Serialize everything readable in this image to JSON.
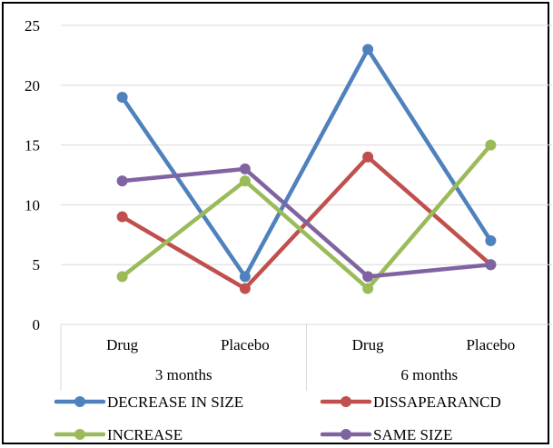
{
  "chart_data": {
    "type": "line",
    "title": "",
    "xlabel": "",
    "ylabel": "",
    "ylim": [
      0,
      25
    ],
    "yticks": [
      0,
      5,
      10,
      15,
      20,
      25
    ],
    "grid": true,
    "legend_position": "bottom",
    "categories": [
      "Drug",
      "Placebo",
      "Drug",
      "Placebo"
    ],
    "groups": [
      {
        "label": "3 months",
        "span": [
          0,
          1
        ]
      },
      {
        "label": "6 months",
        "span": [
          2,
          3
        ]
      }
    ],
    "series": [
      {
        "name": "DECREASE IN SIZE",
        "color": "#4f81bd",
        "values": [
          19,
          4,
          23,
          7
        ]
      },
      {
        "name": "DISSAPEARANCD",
        "color": "#c0504d",
        "values": [
          9,
          3,
          14,
          5
        ]
      },
      {
        "name": "INCREASE",
        "color": "#9bbb59",
        "values": [
          4,
          12,
          3,
          15
        ]
      },
      {
        "name": "SAME SIZE",
        "color": "#8064a2",
        "values": [
          12,
          13,
          4,
          5
        ]
      }
    ]
  }
}
